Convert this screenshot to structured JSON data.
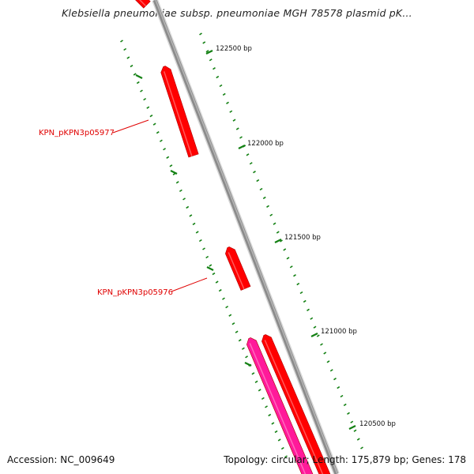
{
  "title": "Klebsiella pneumoniae subsp. pneumoniae MGH 78578 plasmid pK...",
  "footer": {
    "accession_label": "Accession:",
    "accession": "NC_009649",
    "topology": "Topology: circular; Length: 175,879 bp; Genes: 178"
  },
  "ticks": [
    {
      "bp": 122500,
      "label": "122500 bp"
    },
    {
      "bp": 122000,
      "label": "122000 bp"
    },
    {
      "bp": 121500,
      "label": "121500 bp"
    },
    {
      "bp": 121000,
      "label": "121000 bp"
    },
    {
      "bp": 120500,
      "label": "120500 bp"
    }
  ],
  "genes": [
    {
      "label": "KPN_pKPN3p05977",
      "color": "#ff0000"
    },
    {
      "label": "KPN_pKPN3p05976",
      "color": "#ff0000"
    }
  ],
  "colors": {
    "backbone": "#8c8c8c",
    "gene_red": "#ff0000",
    "gene_pink": "#ff1a9a",
    "tick": "#138013",
    "label_red": "#e00000"
  }
}
